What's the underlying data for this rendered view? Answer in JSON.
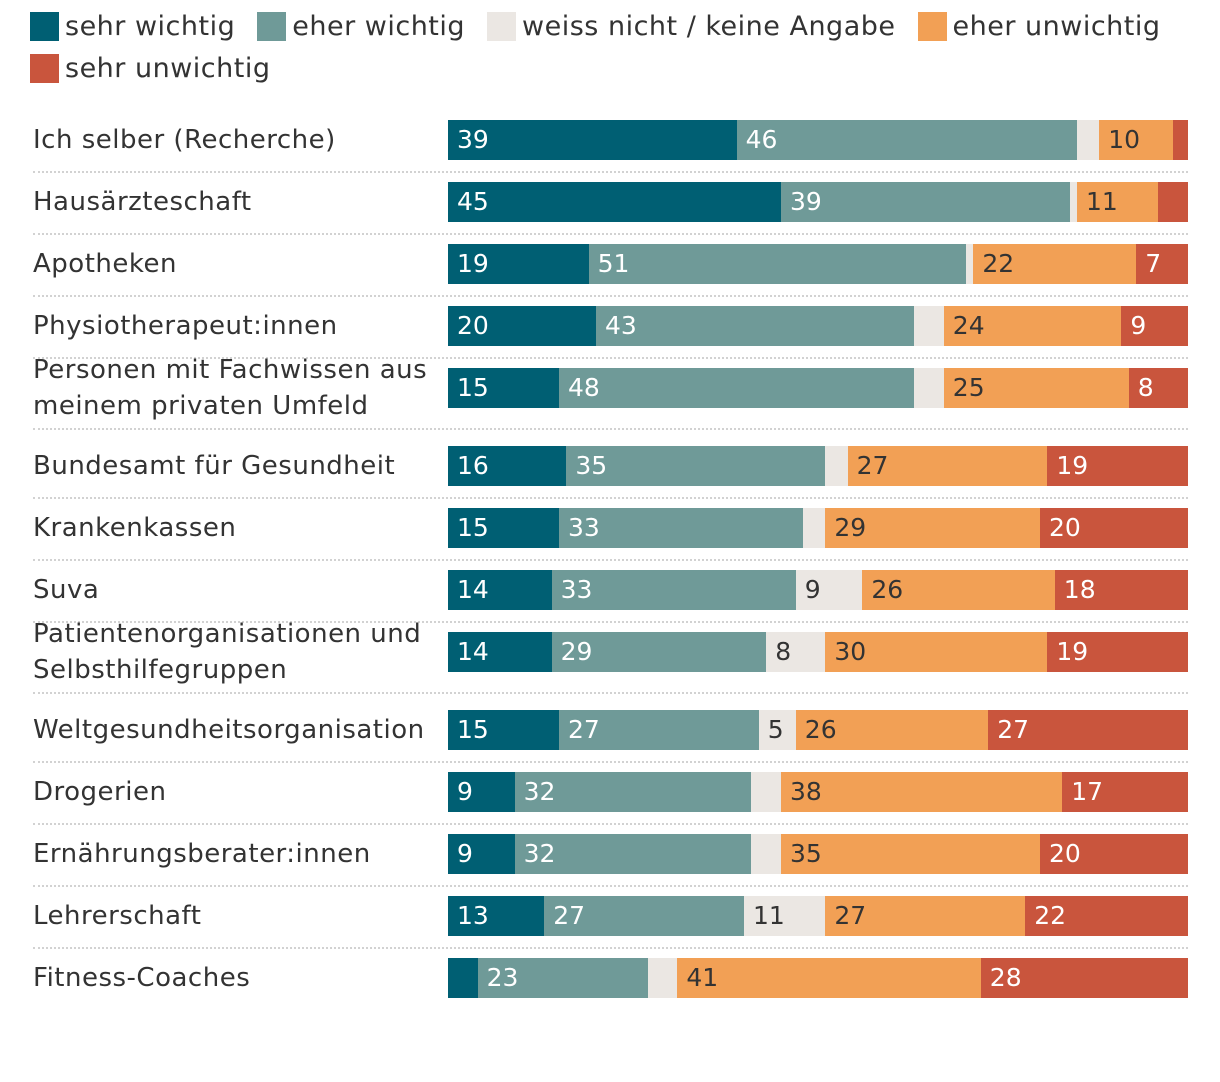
{
  "chart_data": {
    "type": "bar",
    "orientation": "horizontal",
    "stacked": true,
    "value_unit": "percent",
    "legend_position": "top",
    "legend": [
      {
        "name": "sehr wichtig",
        "color": "#005f73"
      },
      {
        "name": "eher wichtig",
        "color": "#6f9a98"
      },
      {
        "name": "weiss nicht / keine Angabe",
        "color": "#ebe7e3"
      },
      {
        "name": "eher unwichtig",
        "color": "#f2a055"
      },
      {
        "name": "sehr unwichtig",
        "color": "#c9553d"
      }
    ],
    "categories": [
      "Ich selber (Recherche)",
      "Hausärzteschaft",
      "Apotheken",
      "Physiotherapeut:innen",
      "Personen mit Fachwissen aus meinem privaten Umfeld",
      "Bundesamt für Gesundheit",
      "Krankenkassen",
      "Suva",
      "Patientenorganisationen und Selbsthilfegruppen",
      "Weltgesundheitsorganisation",
      "Drogerien",
      "Ernährungsberater:innen",
      "Lehrerschaft",
      "Fitness-Coaches"
    ],
    "series": [
      {
        "name": "sehr wichtig",
        "values": [
          39,
          45,
          19,
          20,
          15,
          16,
          15,
          14,
          14,
          15,
          9,
          9,
          13,
          4
        ],
        "labels": [
          "39",
          "45",
          "19",
          "20",
          "15",
          "16",
          "15",
          "14",
          "14",
          "15",
          "9",
          "9",
          "13",
          ""
        ]
      },
      {
        "name": "eher wichtig",
        "values": [
          46,
          39,
          51,
          43,
          48,
          35,
          33,
          33,
          29,
          27,
          32,
          32,
          27,
          23
        ],
        "labels": [
          "46",
          "39",
          "51",
          "43",
          "48",
          "35",
          "33",
          "33",
          "29",
          "27",
          "32",
          "32",
          "27",
          "23"
        ]
      },
      {
        "name": "weiss nicht / keine Angabe",
        "values": [
          3,
          1,
          1,
          4,
          4,
          3,
          3,
          9,
          8,
          5,
          4,
          4,
          11,
          4
        ],
        "labels": [
          "",
          "",
          "",
          "",
          "",
          "",
          "",
          "9",
          "8",
          "5",
          "",
          "",
          "11",
          ""
        ]
      },
      {
        "name": "eher unwichtig",
        "values": [
          10,
          11,
          22,
          24,
          25,
          27,
          29,
          26,
          30,
          26,
          38,
          35,
          27,
          41
        ],
        "labels": [
          "10",
          "11",
          "22",
          "24",
          "25",
          "27",
          "29",
          "26",
          "30",
          "26",
          "38",
          "35",
          "27",
          "41"
        ]
      },
      {
        "name": "sehr unwichtig",
        "values": [
          2,
          4,
          7,
          9,
          8,
          19,
          20,
          18,
          19,
          27,
          17,
          20,
          22,
          28
        ],
        "labels": [
          "",
          "",
          "7",
          "9",
          "8",
          "19",
          "20",
          "18",
          "19",
          "27",
          "17",
          "20",
          "22",
          "28"
        ]
      }
    ],
    "xlim": [
      0,
      100
    ],
    "grid": false
  }
}
